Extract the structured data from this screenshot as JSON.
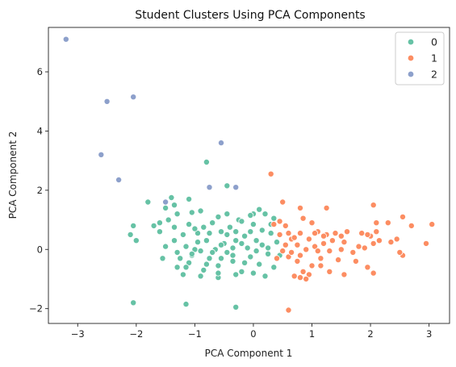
{
  "chart_data": {
    "type": "scatter",
    "title": "Student Clusters Using PCA Components",
    "xlabel": "PCA Component 1",
    "ylabel": "PCA Component 2",
    "xlim": [
      -3.5,
      3.35
    ],
    "ylim": [
      -2.5,
      7.5
    ],
    "x_ticks": [
      -3,
      -2,
      -1,
      0,
      1,
      2,
      3
    ],
    "y_ticks": [
      -2,
      0,
      2,
      4,
      6
    ],
    "x_tick_labels": [
      "−3",
      "−2",
      "−1",
      "0",
      "1",
      "2",
      "3"
    ],
    "y_tick_labels": [
      "−2",
      "0",
      "2",
      "4",
      "6"
    ],
    "grid": false,
    "legend_position": "top-right",
    "series": [
      {
        "name": "0",
        "color": "#66c2a5",
        "points": [
          [
            -2.05,
            -1.8
          ],
          [
            -1.15,
            -1.85
          ],
          [
            -0.3,
            -1.95
          ],
          [
            -1.8,
            1.6
          ],
          [
            -1.4,
            1.75
          ],
          [
            -1.1,
            1.7
          ],
          [
            -0.8,
            2.95
          ],
          [
            -0.45,
            2.15
          ],
          [
            -1.5,
            1.4
          ],
          [
            -1.35,
            1.5
          ],
          [
            -2.1,
            0.5
          ],
          [
            -2.05,
            0.8
          ],
          [
            -2.0,
            0.3
          ],
          [
            -1.6,
            0.6
          ],
          [
            -1.55,
            -0.3
          ],
          [
            -1.3,
            1.2
          ],
          [
            -1.6,
            0.9
          ],
          [
            -1.05,
            1.25
          ],
          [
            -1.45,
            1.0
          ],
          [
            -1.35,
            0.3
          ],
          [
            -1.3,
            -0.1
          ],
          [
            -1.3,
            -0.6
          ],
          [
            -1.25,
            -0.3
          ],
          [
            -1.2,
            0.5
          ],
          [
            -1.15,
            0.1
          ],
          [
            -1.1,
            -0.45
          ],
          [
            -1.05,
            -0.2
          ],
          [
            -1.0,
            0.0
          ],
          [
            -0.95,
            0.55
          ],
          [
            -0.9,
            -0.05
          ],
          [
            -0.85,
            -0.7
          ],
          [
            -0.8,
            0.3
          ],
          [
            -0.75,
            -0.3
          ],
          [
            -0.7,
            0.9
          ],
          [
            -0.65,
            0.0
          ],
          [
            -0.6,
            -0.55
          ],
          [
            -0.55,
            0.6
          ],
          [
            -0.5,
            0.2
          ],
          [
            -0.45,
            -0.1
          ],
          [
            -0.4,
            0.75
          ],
          [
            -0.35,
            -0.4
          ],
          [
            -0.3,
            0.3
          ],
          [
            -0.25,
            1.0
          ],
          [
            -0.2,
            -0.75
          ],
          [
            -0.15,
            0.45
          ],
          [
            -0.1,
            0.05
          ],
          [
            -0.05,
            -0.25
          ],
          [
            0.0,
            0.85
          ],
          [
            0.05,
            0.3
          ],
          [
            0.1,
            -0.5
          ],
          [
            0.15,
            0.15
          ],
          [
            0.2,
            1.2
          ],
          [
            0.25,
            -0.15
          ],
          [
            0.3,
            0.55
          ],
          [
            0.35,
            -0.6
          ],
          [
            0.0,
            1.2
          ],
          [
            0.1,
            1.35
          ],
          [
            -0.2,
            0.95
          ],
          [
            -0.6,
            1.1
          ],
          [
            -0.9,
            1.3
          ],
          [
            -1.1,
            0.85
          ],
          [
            -1.2,
            -0.85
          ],
          [
            -0.9,
            -0.9
          ],
          [
            -0.6,
            -0.95
          ],
          [
            -0.3,
            -0.85
          ],
          [
            0.0,
            -0.8
          ],
          [
            0.2,
            -0.9
          ],
          [
            -0.55,
            0.15
          ],
          [
            -0.75,
            0.55
          ],
          [
            -0.95,
            0.25
          ],
          [
            -0.05,
            0.6
          ],
          [
            -0.45,
            0.5
          ],
          [
            -0.7,
            -0.1
          ],
          [
            0.3,
            0.85
          ],
          [
            0.25,
            0.05
          ],
          [
            -0.15,
            -0.45
          ],
          [
            -0.35,
            0.05
          ],
          [
            -0.85,
            0.75
          ],
          [
            -1.0,
            0.7
          ],
          [
            -0.55,
            -0.3
          ],
          [
            -0.3,
            0.6
          ],
          [
            0.4,
            0.25
          ],
          [
            0.45,
            -0.2
          ],
          [
            0.45,
            0.5
          ],
          [
            0.35,
            1.05
          ],
          [
            -1.35,
            0.75
          ],
          [
            -1.5,
            0.1
          ],
          [
            -1.7,
            0.8
          ],
          [
            -1.15,
            -0.6
          ],
          [
            -0.8,
            -0.5
          ],
          [
            -0.6,
            -0.8
          ],
          [
            -0.35,
            -0.2
          ],
          [
            0.05,
            -0.05
          ],
          [
            0.15,
            0.65
          ],
          [
            -0.2,
            0.2
          ],
          [
            -0.45,
            1.2
          ],
          [
            -0.05,
            1.15
          ],
          [
            -1.05,
            -0.15
          ]
        ]
      },
      {
        "name": "1",
        "color": "#fc8d62",
        "points": [
          [
            0.3,
            2.55
          ],
          [
            0.6,
            -2.05
          ],
          [
            0.5,
            1.6
          ],
          [
            0.8,
            1.4
          ],
          [
            1.25,
            1.4
          ],
          [
            2.05,
            1.5
          ],
          [
            2.55,
            1.1
          ],
          [
            2.1,
            0.9
          ],
          [
            2.7,
            0.8
          ],
          [
            3.05,
            0.85
          ],
          [
            2.95,
            0.2
          ],
          [
            2.55,
            -0.2
          ],
          [
            2.45,
            0.35
          ],
          [
            2.35,
            0.25
          ],
          [
            2.1,
            0.6
          ],
          [
            2.0,
            0.45
          ],
          [
            1.9,
            0.05
          ],
          [
            2.05,
            0.2
          ],
          [
            1.95,
            -0.6
          ],
          [
            2.05,
            -0.8
          ],
          [
            1.8,
            0.1
          ],
          [
            1.7,
            -0.1
          ],
          [
            1.55,
            0.25
          ],
          [
            1.5,
            0.0
          ],
          [
            1.45,
            -0.35
          ],
          [
            1.35,
            0.3
          ],
          [
            1.3,
            -0.05
          ],
          [
            1.25,
            0.5
          ],
          [
            1.2,
            0.2
          ],
          [
            1.15,
            -0.3
          ],
          [
            1.1,
            0.6
          ],
          [
            1.05,
            0.1
          ],
          [
            1.0,
            -0.55
          ],
          [
            0.95,
            0.35
          ],
          [
            0.9,
            0.0
          ],
          [
            0.85,
            -0.75
          ],
          [
            0.8,
            0.55
          ],
          [
            0.75,
            0.15
          ],
          [
            0.7,
            -0.9
          ],
          [
            0.65,
            0.35
          ],
          [
            0.6,
            -0.25
          ],
          [
            0.55,
            0.8
          ],
          [
            0.5,
            -0.05
          ],
          [
            0.45,
            0.5
          ],
          [
            0.4,
            -0.3
          ],
          [
            0.35,
            0.85
          ],
          [
            1.0,
            0.9
          ],
          [
            0.85,
            1.05
          ],
          [
            1.4,
            0.55
          ],
          [
            1.6,
            0.6
          ],
          [
            1.75,
            -0.4
          ],
          [
            1.3,
            -0.75
          ],
          [
            0.95,
            -0.85
          ],
          [
            0.75,
            -0.4
          ],
          [
            1.55,
            -0.85
          ],
          [
            2.3,
            0.9
          ],
          [
            1.85,
            0.55
          ],
          [
            1.05,
            0.55
          ],
          [
            0.55,
            0.15
          ],
          [
            0.6,
            0.55
          ],
          [
            1.2,
            0.45
          ],
          [
            1.95,
            0.5
          ],
          [
            2.15,
            0.3
          ],
          [
            2.5,
            -0.1
          ],
          [
            0.8,
            -0.2
          ],
          [
            1.1,
            -0.05
          ],
          [
            0.45,
            0.95
          ],
          [
            0.7,
            0.4
          ],
          [
            1.15,
            -0.55
          ],
          [
            0.9,
            -1.0
          ],
          [
            0.8,
            -0.95
          ],
          [
            0.65,
            -0.1
          ],
          [
            1.5,
            0.45
          ]
        ]
      },
      {
        "name": "2",
        "color": "#8da0cb",
        "points": [
          [
            -3.2,
            7.1
          ],
          [
            -2.5,
            5.0
          ],
          [
            -2.05,
            5.15
          ],
          [
            -2.6,
            3.2
          ],
          [
            -2.3,
            2.35
          ],
          [
            -0.55,
            3.6
          ],
          [
            -0.75,
            2.1
          ],
          [
            -0.3,
            2.1
          ],
          [
            -1.5,
            1.6
          ]
        ]
      }
    ]
  }
}
